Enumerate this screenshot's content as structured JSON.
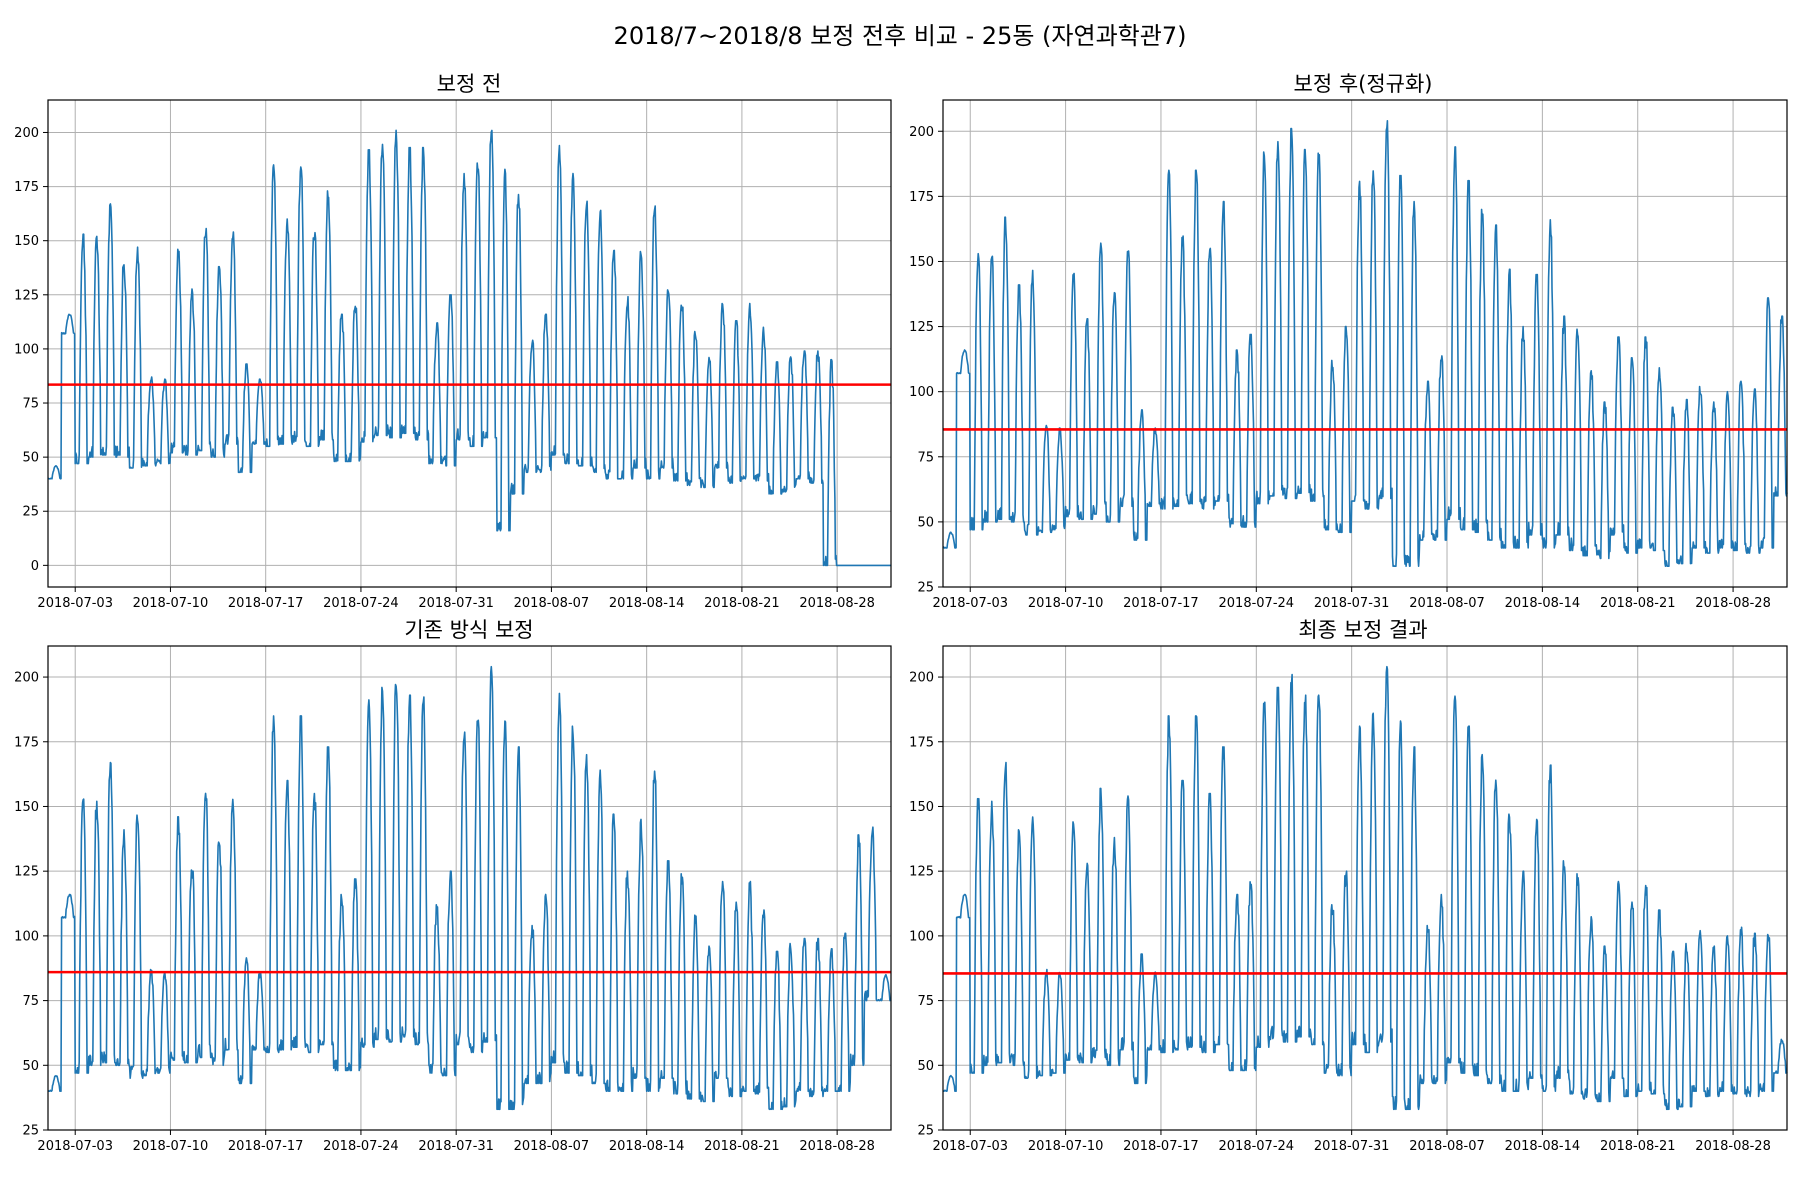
{
  "figure": {
    "suptitle": "2018/7~2018/8 보정 전후 비교 - 25동 (자연과학관7)"
  },
  "colors": {
    "series": "#1f77b4",
    "mean_line": "#ff0000"
  },
  "chart_data": [
    {
      "type": "line",
      "title": "보정 전",
      "x_range": [
        "2018-07-01",
        "2018-08-31T23:00"
      ],
      "x_ticks": [
        "2018-07-03",
        "2018-07-10",
        "2018-07-17",
        "2018-07-24",
        "2018-07-31",
        "2018-08-07",
        "2018-08-14",
        "2018-08-21",
        "2018-08-28"
      ],
      "ylim": [
        -10,
        215
      ],
      "y_ticks": [
        0,
        25,
        50,
        75,
        100,
        125,
        150,
        175,
        200
      ],
      "grid": true,
      "mean": 83.5,
      "daily_max": [
        46,
        116,
        153,
        152,
        167,
        141,
        147,
        87,
        86,
        146,
        128,
        157,
        138,
        154,
        93,
        86,
        185,
        160,
        185,
        155,
        173,
        116,
        122,
        192,
        196,
        201,
        193,
        193,
        112,
        125,
        181,
        186,
        204,
        183,
        173,
        104,
        116,
        194,
        181,
        170,
        164,
        147,
        125,
        145,
        166,
        129,
        124,
        108,
        96,
        121,
        113,
        121,
        110,
        94,
        97,
        99,
        99,
        95,
        0,
        0,
        0,
        0
      ],
      "daily_min": [
        40,
        107,
        47,
        50,
        51,
        50,
        45,
        46,
        47,
        52,
        51,
        53,
        50,
        56,
        43,
        56,
        55,
        56,
        57,
        55,
        58,
        48,
        48,
        57,
        60,
        59,
        61,
        58,
        47,
        46,
        58,
        55,
        59,
        16,
        33,
        43,
        43,
        51,
        47,
        46,
        43,
        40,
        40,
        45,
        40,
        45,
        39,
        37,
        36,
        45,
        38,
        40,
        39,
        33,
        34,
        40,
        38,
        0,
        0,
        0,
        0,
        0
      ]
    },
    {
      "type": "line",
      "title": "보정 후(정규화)",
      "x_range": [
        "2018-07-01",
        "2018-08-31T23:00"
      ],
      "x_ticks": [
        "2018-07-03",
        "2018-07-10",
        "2018-07-17",
        "2018-07-24",
        "2018-07-31",
        "2018-08-07",
        "2018-08-14",
        "2018-08-21",
        "2018-08-28"
      ],
      "ylim": [
        25,
        212
      ],
      "y_ticks": [
        25,
        50,
        75,
        100,
        125,
        150,
        175,
        200
      ],
      "grid": true,
      "mean": 85.5,
      "daily_max": [
        46,
        116,
        153,
        152,
        167,
        141,
        147,
        87,
        86,
        146,
        128,
        157,
        138,
        154,
        93,
        86,
        185,
        160,
        185,
        155,
        173,
        116,
        122,
        192,
        196,
        201,
        193,
        193,
        112,
        125,
        181,
        186,
        204,
        183,
        173,
        104,
        116,
        194,
        181,
        170,
        164,
        147,
        125,
        145,
        166,
        129,
        124,
        108,
        96,
        121,
        113,
        121,
        110,
        94,
        97,
        102,
        96,
        100,
        104,
        101,
        136,
        129
      ],
      "daily_min": [
        40,
        107,
        47,
        50,
        51,
        50,
        45,
        46,
        47,
        52,
        51,
        53,
        50,
        56,
        43,
        56,
        55,
        56,
        57,
        55,
        58,
        48,
        48,
        57,
        60,
        59,
        61,
        58,
        47,
        46,
        58,
        55,
        59,
        33,
        33,
        43,
        43,
        51,
        47,
        46,
        43,
        40,
        40,
        45,
        40,
        45,
        39,
        37,
        36,
        45,
        38,
        40,
        39,
        33,
        34,
        40,
        38,
        40,
        39,
        38,
        40,
        60
      ]
    },
    {
      "type": "line",
      "title": "기존 방식 보정",
      "x_range": [
        "2018-07-01",
        "2018-08-31T23:00"
      ],
      "x_ticks": [
        "2018-07-03",
        "2018-07-10",
        "2018-07-17",
        "2018-07-24",
        "2018-07-31",
        "2018-08-07",
        "2018-08-14",
        "2018-08-21",
        "2018-08-28"
      ],
      "ylim": [
        25,
        212
      ],
      "y_ticks": [
        25,
        50,
        75,
        100,
        125,
        150,
        175,
        200
      ],
      "grid": true,
      "mean": 86.0,
      "daily_max": [
        46,
        116,
        153,
        152,
        167,
        141,
        147,
        87,
        86,
        146,
        128,
        157,
        138,
        154,
        93,
        86,
        185,
        160,
        185,
        155,
        173,
        116,
        122,
        192,
        196,
        201,
        193,
        193,
        112,
        125,
        181,
        186,
        204,
        183,
        173,
        104,
        116,
        194,
        181,
        170,
        164,
        147,
        125,
        145,
        166,
        129,
        124,
        108,
        96,
        121,
        113,
        121,
        110,
        94,
        97,
        99,
        99,
        95,
        101,
        139,
        142,
        85
      ],
      "daily_min": [
        40,
        107,
        47,
        50,
        51,
        50,
        45,
        46,
        47,
        52,
        51,
        53,
        50,
        56,
        43,
        56,
        55,
        56,
        57,
        55,
        58,
        48,
        48,
        57,
        60,
        59,
        61,
        58,
        47,
        46,
        58,
        55,
        59,
        33,
        33,
        43,
        43,
        51,
        47,
        46,
        43,
        40,
        40,
        45,
        40,
        45,
        39,
        37,
        36,
        45,
        38,
        40,
        39,
        33,
        34,
        40,
        38,
        40,
        40,
        50,
        75,
        75
      ]
    },
    {
      "type": "line",
      "title": "최종 보정 결과",
      "x_range": [
        "2018-07-01",
        "2018-08-31T23:00"
      ],
      "x_ticks": [
        "2018-07-03",
        "2018-07-10",
        "2018-07-17",
        "2018-07-24",
        "2018-07-31",
        "2018-08-07",
        "2018-08-14",
        "2018-08-21",
        "2018-08-28"
      ],
      "ylim": [
        25,
        212
      ],
      "y_ticks": [
        25,
        50,
        75,
        100,
        125,
        150,
        175,
        200
      ],
      "grid": true,
      "mean": 85.5,
      "daily_max": [
        46,
        116,
        153,
        152,
        167,
        141,
        147,
        87,
        86,
        146,
        128,
        157,
        138,
        154,
        93,
        86,
        185,
        160,
        185,
        155,
        173,
        116,
        122,
        192,
        196,
        201,
        193,
        193,
        112,
        125,
        181,
        186,
        204,
        183,
        173,
        104,
        116,
        194,
        181,
        170,
        164,
        147,
        125,
        145,
        166,
        129,
        124,
        108,
        96,
        121,
        113,
        121,
        110,
        94,
        97,
        102,
        96,
        100,
        104,
        101,
        103,
        60
      ],
      "daily_min": [
        40,
        107,
        47,
        50,
        51,
        50,
        45,
        46,
        47,
        52,
        51,
        53,
        50,
        56,
        43,
        56,
        55,
        56,
        57,
        55,
        58,
        48,
        48,
        57,
        60,
        59,
        61,
        58,
        47,
        46,
        58,
        55,
        59,
        33,
        33,
        43,
        43,
        51,
        47,
        46,
        43,
        40,
        40,
        45,
        40,
        45,
        39,
        37,
        36,
        45,
        38,
        40,
        39,
        33,
        34,
        40,
        38,
        40,
        39,
        38,
        40,
        47
      ]
    }
  ]
}
